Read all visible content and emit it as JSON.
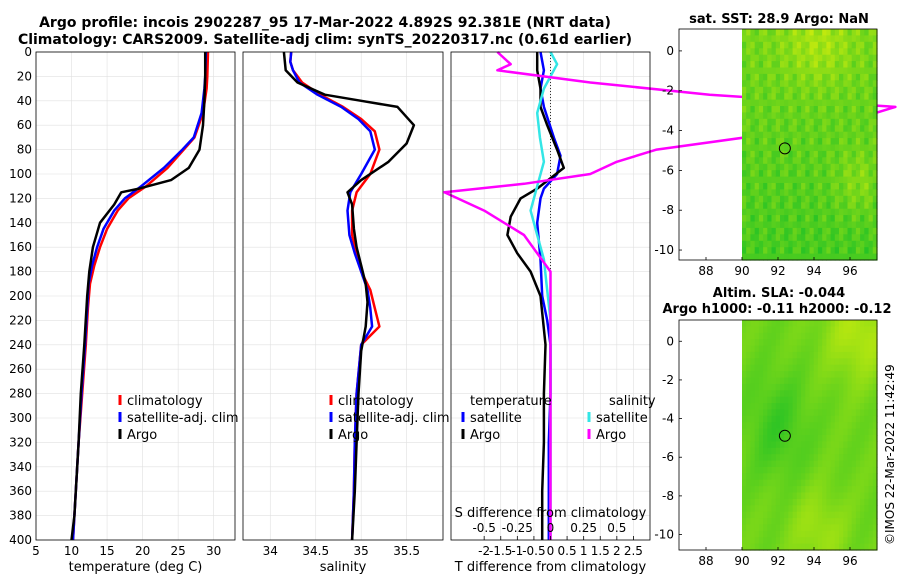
{
  "title": {
    "line1": "Argo profile: incois 2902287_95 17-Mar-2022 4.892S 92.381E (NRT data)",
    "line2": "Climatology: CARS2009. Satellite-adj clim: synTS_20220317.nc (0.61d earlier)"
  },
  "watermark": "©IMOS 22-Mar-2022 11:42:49",
  "colors": {
    "climatology": "#ff0000",
    "satellite": "#0000ff",
    "argo": "#000000",
    "satellite_s": "#33e6e6",
    "argo_s": "#ff00ff"
  },
  "chart_data": [
    {
      "id": "temperature",
      "type": "line",
      "xlabel": "temperature (deg C)",
      "ylabel": "",
      "xlim": [
        5,
        33
      ],
      "ylim": [
        400,
        0
      ],
      "xticks": [
        5,
        10,
        15,
        20,
        25,
        30
      ],
      "yticks": [
        0,
        20,
        40,
        60,
        80,
        100,
        120,
        140,
        160,
        180,
        200,
        220,
        240,
        260,
        280,
        300,
        320,
        340,
        360,
        380,
        400
      ],
      "grid": true,
      "legend": [
        "climatology",
        "satellite-adj. clim",
        "Argo"
      ],
      "series": [
        {
          "name": "climatology",
          "color": "#ff0000",
          "x": [
            29.2,
            29.1,
            29.0,
            28.5,
            27.3,
            25.8,
            23.5,
            20.5,
            18.0,
            16.5,
            15.0,
            14.0,
            13.2,
            12.6,
            12.3,
            12.0,
            11.5,
            11.0,
            10.7,
            10.4,
            10.2
          ],
          "y": [
            0,
            20,
            30,
            50,
            70,
            80,
            95,
            110,
            120,
            130,
            145,
            160,
            175,
            190,
            210,
            240,
            280,
            320,
            350,
            380,
            400
          ]
        },
        {
          "name": "satellite-adj. clim",
          "color": "#0000ff",
          "x": [
            28.9,
            28.8,
            28.7,
            28.3,
            27.2,
            25.6,
            23.0,
            19.8,
            17.5,
            16.0,
            14.5,
            13.6,
            12.9,
            12.4,
            12.2,
            11.9,
            11.4,
            11.0,
            10.7,
            10.4,
            10.2
          ],
          "y": [
            0,
            20,
            30,
            50,
            70,
            80,
            95,
            110,
            120,
            130,
            145,
            160,
            175,
            190,
            210,
            240,
            280,
            320,
            350,
            380,
            400
          ]
        },
        {
          "name": "Argo",
          "color": "#000000",
          "x": [
            28.8,
            28.8,
            28.7,
            28.5,
            28.0,
            26.5,
            24.0,
            19.5,
            17.0,
            16.0,
            14.0,
            13.0,
            12.5,
            12.2,
            11.8,
            11.3,
            11.0,
            10.7,
            10.4,
            10.0
          ],
          "y": [
            0,
            20,
            40,
            60,
            80,
            95,
            105,
            112,
            115,
            125,
            140,
            160,
            180,
            200,
            240,
            280,
            320,
            350,
            380,
            400
          ]
        }
      ]
    },
    {
      "id": "salinity",
      "type": "line",
      "xlabel": "salinity",
      "xlim": [
        33.7,
        35.9
      ],
      "ylim": [
        400,
        0
      ],
      "xticks": [
        34,
        34.5,
        35,
        35.5
      ],
      "grid": true,
      "legend": [
        "climatology",
        "satellite-adj. clim",
        "Argo"
      ],
      "series": [
        {
          "name": "climatology",
          "color": "#ff0000",
          "x": [
            34.23,
            34.22,
            34.25,
            34.35,
            34.55,
            34.8,
            35.0,
            35.15,
            35.2,
            35.1,
            34.95,
            34.9,
            34.9,
            34.95,
            35.0,
            35.1,
            35.15,
            35.2,
            35.0,
            34.95,
            34.93,
            34.92,
            34.9
          ],
          "y": [
            0,
            8,
            15,
            25,
            35,
            45,
            55,
            65,
            80,
            100,
            115,
            130,
            150,
            165,
            180,
            195,
            210,
            225,
            240,
            280,
            320,
            360,
            400
          ]
        },
        {
          "name": "satellite-adj. clim",
          "color": "#0000ff",
          "x": [
            34.23,
            34.22,
            34.25,
            34.32,
            34.52,
            34.78,
            34.97,
            35.1,
            35.15,
            35.0,
            34.88,
            34.85,
            34.87,
            34.93,
            35.0,
            35.07,
            35.1,
            35.12,
            35.0,
            34.95,
            34.93,
            34.92,
            34.9
          ],
          "y": [
            0,
            8,
            15,
            25,
            35,
            45,
            55,
            65,
            80,
            100,
            115,
            130,
            150,
            165,
            180,
            195,
            210,
            225,
            240,
            280,
            320,
            360,
            400
          ]
        },
        {
          "name": "Argo",
          "color": "#000000",
          "x": [
            34.15,
            34.17,
            34.3,
            34.6,
            35.0,
            35.4,
            35.58,
            35.5,
            35.3,
            35.0,
            34.85,
            34.9,
            34.92,
            34.95,
            35.0,
            35.05,
            35.07,
            35.05,
            35.0,
            34.97,
            34.95,
            34.93,
            34.9
          ],
          "y": [
            0,
            15,
            25,
            35,
            40,
            45,
            60,
            75,
            90,
            105,
            115,
            125,
            145,
            160,
            175,
            190,
            205,
            225,
            245,
            280,
            320,
            360,
            400
          ]
        }
      ]
    },
    {
      "id": "difference",
      "type": "line",
      "xlabel": "T difference from climatology",
      "top_xlabel": "S difference from climatology",
      "xlim": [
        -3,
        3
      ],
      "ylim": [
        400,
        0
      ],
      "xticks": [
        -2,
        -1.5,
        -1,
        -0.5,
        0,
        0.5,
        1,
        1.5,
        2,
        2.5
      ],
      "xtick_labels": [
        "-2",
        "-1.5",
        "-1",
        "-0.5",
        "0",
        "0.5",
        "1",
        "1.5",
        "2",
        "2.5"
      ],
      "s_ticks": [
        -0.5,
        -0.25,
        0,
        0.25,
        0.5
      ],
      "s_tick_labels": [
        "-0.5",
        "-0.25",
        "0",
        "0.25",
        "0.5"
      ],
      "s_scale": 4,
      "grid": true,
      "legend_temperature": {
        "title": "temperature",
        "entries": [
          "satellite",
          "Argo"
        ]
      },
      "legend_salinity": {
        "title": "salinity",
        "entries": [
          "satellite",
          "Argo"
        ]
      },
      "series": [
        {
          "name": "T satellite",
          "color": "#0000ff",
          "x": [
            -0.3,
            -0.2,
            -0.3,
            -0.2,
            0.1,
            0.3,
            0.2,
            -0.2,
            -0.3,
            -0.4,
            -0.3,
            -0.25,
            -0.1,
            0.0,
            0.0,
            -0.05,
            -0.05,
            -0.05
          ],
          "y": [
            0,
            15,
            30,
            45,
            70,
            85,
            100,
            112,
            120,
            140,
            170,
            200,
            220,
            240,
            280,
            320,
            360,
            400
          ]
        },
        {
          "name": "T Argo",
          "color": "#000000",
          "x": [
            -0.4,
            -0.4,
            -0.3,
            -0.3,
            -0.1,
            0.2,
            0.4,
            -0.4,
            -0.9,
            -1.2,
            -1.3,
            -1.0,
            -0.6,
            -0.3,
            -0.15,
            -0.2,
            -0.2,
            -0.25,
            -0.25
          ],
          "y": [
            0,
            15,
            30,
            45,
            60,
            80,
            95,
            112,
            120,
            135,
            150,
            165,
            180,
            200,
            240,
            280,
            320,
            360,
            400
          ]
        },
        {
          "name": "S satellite",
          "color": "#33e6e6",
          "x": [
            0.0,
            0.05,
            -0.05,
            -0.1,
            -0.08,
            -0.05,
            -0.1,
            -0.15,
            -0.1,
            -0.05,
            -0.03,
            0.0,
            0.0,
            0.0,
            0.0
          ],
          "y": [
            0,
            10,
            30,
            50,
            70,
            90,
            110,
            130,
            150,
            170,
            190,
            220,
            280,
            340,
            400
          ]
        },
        {
          "name": "S Argo",
          "color": "#ff00ff",
          "x": [
            -0.4,
            -0.3,
            -0.4,
            0.3,
            1.2,
            2.6,
            2.3,
            1.8,
            0.8,
            0.5,
            0.3,
            -0.2,
            -0.8,
            -0.5,
            -0.2,
            0.0,
            0.0,
            0.0,
            0.0
          ],
          "y": [
            0,
            10,
            15,
            25,
            35,
            45,
            55,
            65,
            80,
            90,
            100,
            108,
            115,
            130,
            150,
            180,
            220,
            300,
            400
          ]
        }
      ]
    },
    {
      "id": "sst_map",
      "type": "heatmap",
      "title": "sat. SST: 28.9 Argo: NaN",
      "xlim": [
        86.5,
        97.5
      ],
      "ylim": [
        -10.5,
        1.1
      ],
      "xticks": [
        88,
        90,
        92,
        94,
        96
      ],
      "yticks": [
        0,
        -2,
        -4,
        -6,
        -8,
        -10
      ],
      "data_xmin": 90,
      "marker": {
        "lon": 92.381,
        "lat": -4.892
      }
    },
    {
      "id": "sla_map",
      "type": "heatmap",
      "title_line1": "Altim. SLA: -0.044",
      "title_line2": "Argo h1000: -0.11 h2000: -0.12",
      "xlim": [
        86.5,
        97.5
      ],
      "ylim": [
        -10.8,
        1.1
      ],
      "xticks": [
        88,
        90,
        92,
        94,
        96
      ],
      "yticks": [
        0,
        -2,
        -4,
        -6,
        -8,
        -10
      ],
      "data_xmin": 90,
      "marker": {
        "lon": 92.381,
        "lat": -4.892
      }
    }
  ]
}
